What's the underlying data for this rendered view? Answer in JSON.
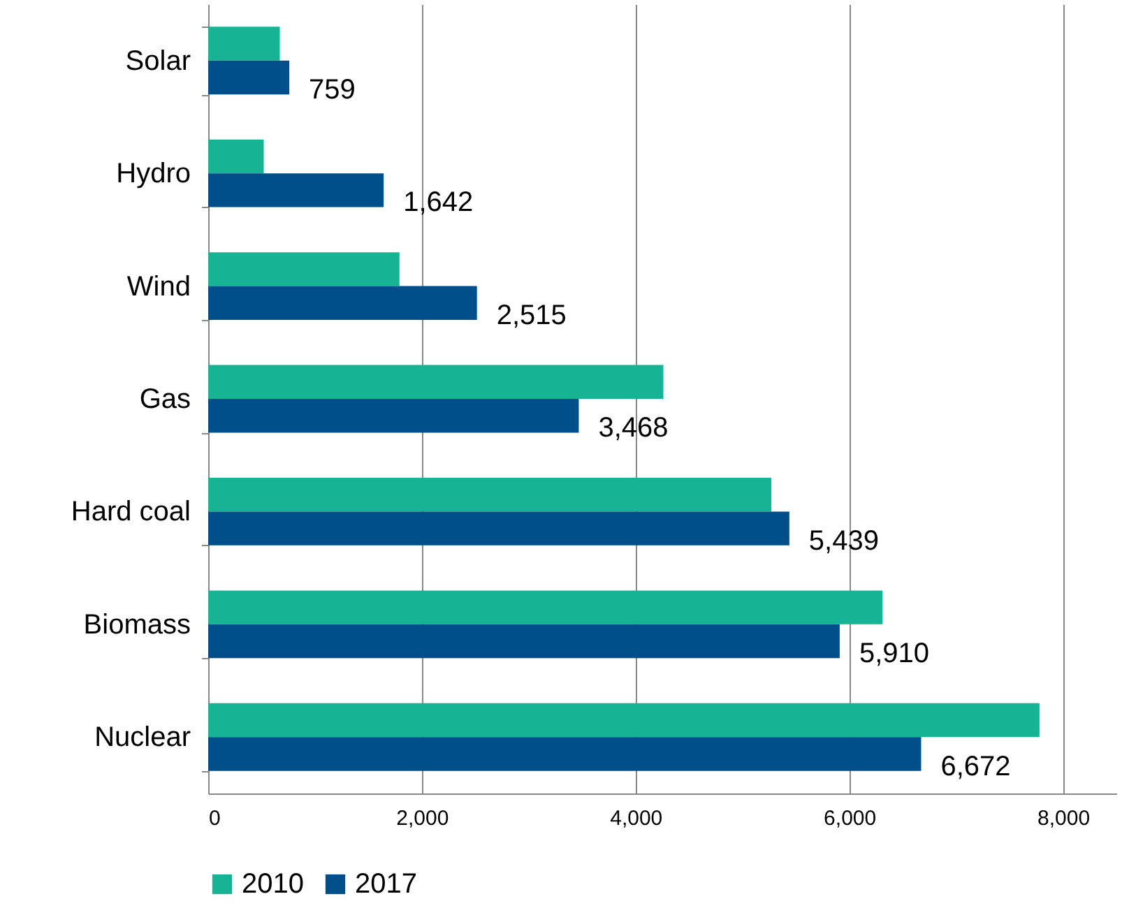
{
  "chart_data": {
    "type": "bar",
    "orientation": "horizontal",
    "categories": [
      "Solar",
      "Hydro",
      "Wind",
      "Gas",
      "Hard coal",
      "Biomass",
      "Nuclear"
    ],
    "series": [
      {
        "name": "2010",
        "color": "#17b395",
        "values": [
          670,
          520,
          1790,
          4260,
          5270,
          6310,
          7780
        ]
      },
      {
        "name": "2017",
        "color": "#004f8b",
        "values": [
          759,
          1642,
          2515,
          3468,
          5439,
          5910,
          6672
        ],
        "value_labels": [
          "759",
          "1,642",
          "2,515",
          "3,468",
          "5,439",
          "5,910",
          "6,672"
        ]
      }
    ],
    "xlim": [
      0,
      8500
    ],
    "xticks": [
      {
        "value": 0,
        "label": "0"
      },
      {
        "value": 2000,
        "label": "2,000"
      },
      {
        "value": 4000,
        "label": "4,000"
      },
      {
        "value": 6000,
        "label": "6,000"
      },
      {
        "value": 8000,
        "label": "8,000"
      }
    ],
    "grid": "x",
    "legend": "bottom"
  }
}
